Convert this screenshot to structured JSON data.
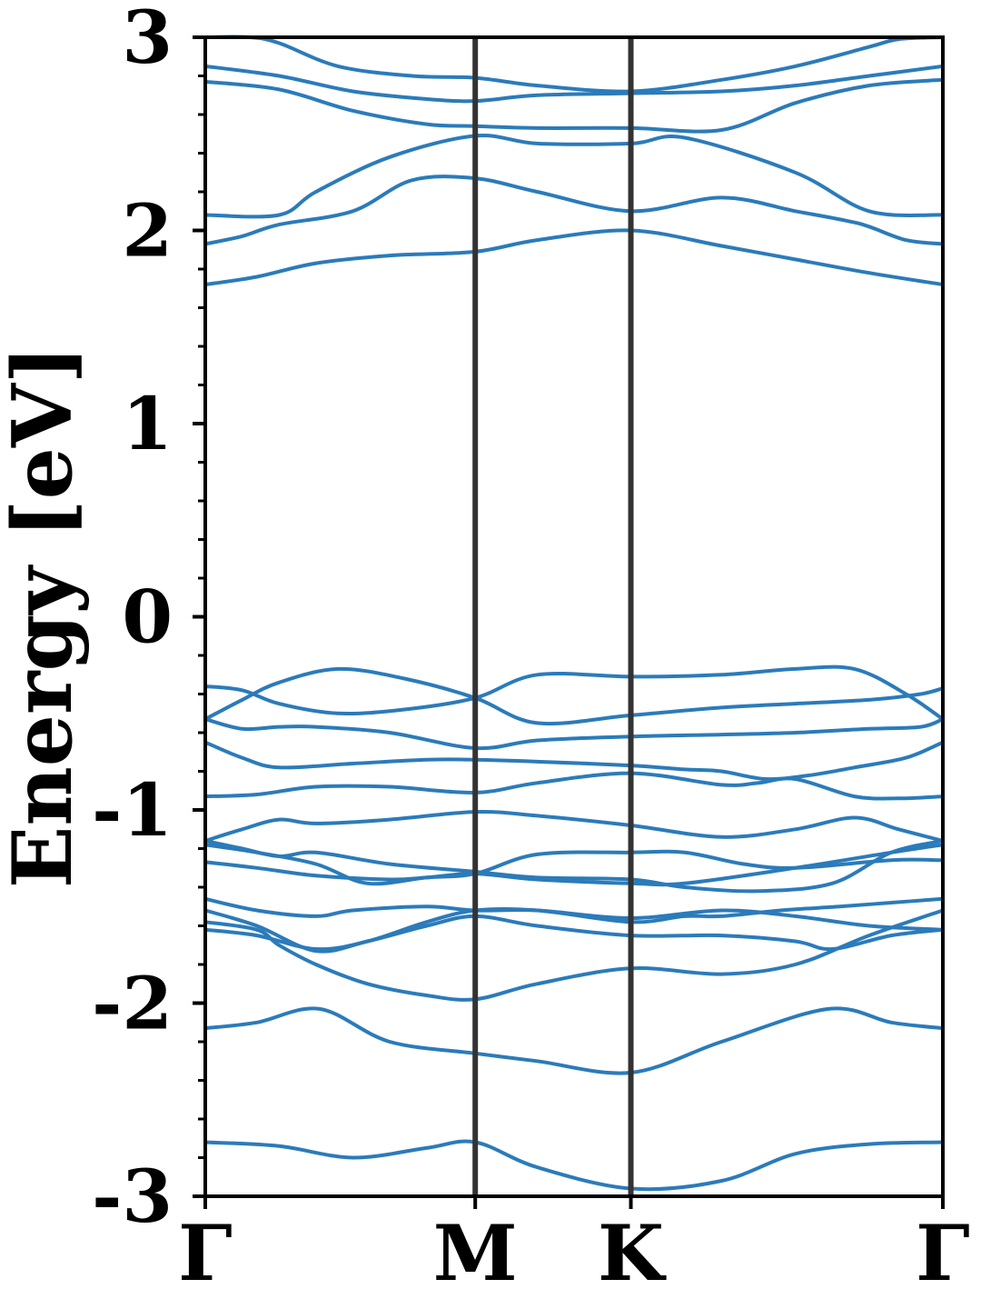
{
  "chart_data": {
    "type": "line",
    "title": "",
    "xlabel": "",
    "ylabel": "Energy [eV]",
    "ylim": [
      -3,
      3
    ],
    "yticks": [
      "3",
      "2",
      "1",
      "0",
      "-1",
      "-2",
      "-3"
    ],
    "yminor_step": 0.2,
    "xlim": [
      0,
      1
    ],
    "kpoints": [
      {
        "label": "Γ",
        "x": 0.0
      },
      {
        "label": "M",
        "x": 0.366
      },
      {
        "label": "K",
        "x": 0.577
      },
      {
        "label": "Γ",
        "x": 1.0
      }
    ],
    "grid": false,
    "legend": "none",
    "colors": {
      "band": "#2b7bba",
      "kline": "#333333",
      "axis": "#000000"
    },
    "series": [
      {
        "x": [
          0,
          0.1,
          0.2,
          0.3,
          0.366,
          0.45,
          0.577,
          0.7,
          0.8,
          0.9,
          1.0
        ],
        "values": [
          -2.72,
          -2.74,
          -2.8,
          -2.75,
          -2.72,
          -2.85,
          -2.96,
          -2.92,
          -2.78,
          -2.73,
          -2.72
        ]
      },
      {
        "x": [
          0,
          0.07,
          0.155,
          0.25,
          0.366,
          0.45,
          0.577,
          0.7,
          0.845,
          0.93,
          1.0
        ],
        "values": [
          -2.13,
          -2.1,
          -2.03,
          -2.2,
          -2.26,
          -2.3,
          -2.36,
          -2.2,
          -2.03,
          -2.1,
          -2.13
        ]
      },
      {
        "x": [
          0,
          0.07,
          0.1,
          0.15,
          0.22,
          0.3,
          0.366,
          0.45,
          0.577,
          0.7,
          0.8,
          0.9,
          1.0
        ],
        "values": [
          -1.58,
          -1.62,
          -1.7,
          -1.8,
          -1.9,
          -1.96,
          -1.98,
          -1.9,
          -1.82,
          -1.85,
          -1.8,
          -1.65,
          -1.52
        ]
      },
      {
        "x": [
          0,
          0.07,
          0.15,
          0.22,
          0.3,
          0.366,
          0.45,
          0.577,
          0.7,
          0.8,
          0.85,
          0.93,
          1.0
        ],
        "values": [
          -1.52,
          -1.6,
          -1.73,
          -1.68,
          -1.6,
          -1.55,
          -1.6,
          -1.65,
          -1.65,
          -1.68,
          -1.72,
          -1.65,
          -1.62
        ]
      },
      {
        "x": [
          0,
          0.07,
          0.15,
          0.22,
          0.3,
          0.366,
          0.45,
          0.577,
          0.65,
          0.7,
          0.78,
          0.86,
          0.93,
          1.0
        ],
        "values": [
          -1.62,
          -1.65,
          -1.72,
          -1.68,
          -1.58,
          -1.52,
          -1.52,
          -1.58,
          -1.55,
          -1.55,
          -1.52,
          -1.5,
          -1.48,
          -1.46
        ]
      },
      {
        "x": [
          0,
          0.07,
          0.15,
          0.2,
          0.3,
          0.366,
          0.45,
          0.577,
          0.7,
          0.8,
          0.9,
          1.0
        ],
        "values": [
          -1.46,
          -1.52,
          -1.55,
          -1.52,
          -1.5,
          -1.52,
          -1.52,
          -1.56,
          -1.52,
          -1.55,
          -1.6,
          -1.62
        ]
      },
      {
        "x": [
          0,
          0.07,
          0.15,
          0.25,
          0.3,
          0.366,
          0.45,
          0.577,
          0.65,
          0.8,
          0.93,
          1.0
        ],
        "values": [
          -1.27,
          -1.3,
          -1.34,
          -1.36,
          -1.35,
          -1.33,
          -1.36,
          -1.38,
          -1.38,
          -1.3,
          -1.22,
          -1.18
        ]
      },
      {
        "x": [
          0,
          0.07,
          0.15,
          0.22,
          0.3,
          0.366,
          0.45,
          0.577,
          0.65,
          0.73,
          0.8,
          0.93,
          1.0
        ],
        "values": [
          -1.18,
          -1.22,
          -1.28,
          -1.38,
          -1.35,
          -1.33,
          -1.23,
          -1.22,
          -1.22,
          -1.28,
          -1.3,
          -1.26,
          -1.26
        ]
      },
      {
        "x": [
          0,
          0.05,
          0.1,
          0.15,
          0.25,
          0.366,
          0.45,
          0.577,
          0.65,
          0.75,
          0.85,
          0.93,
          1.0
        ],
        "values": [
          -1.16,
          -1.2,
          -1.24,
          -1.22,
          -1.28,
          -1.32,
          -1.35,
          -1.36,
          -1.4,
          -1.42,
          -1.38,
          -1.22,
          -1.16
        ]
      },
      {
        "x": [
          0,
          0.05,
          0.1,
          0.15,
          0.25,
          0.366,
          0.45,
          0.577,
          0.7,
          0.8,
          0.88,
          0.94,
          1.0
        ],
        "values": [
          -1.16,
          -1.1,
          -1.05,
          -1.07,
          -1.05,
          -1.01,
          -1.03,
          -1.08,
          -1.14,
          -1.1,
          -1.04,
          -1.1,
          -1.16
        ]
      },
      {
        "x": [
          0,
          0.07,
          0.15,
          0.25,
          0.366,
          0.45,
          0.577,
          0.7,
          0.75,
          0.8,
          0.88,
          0.94,
          1.0
        ],
        "values": [
          -0.93,
          -0.92,
          -0.88,
          -0.88,
          -0.91,
          -0.86,
          -0.81,
          -0.87,
          -0.86,
          -0.84,
          -0.93,
          -0.94,
          -0.93
        ]
      },
      {
        "x": [
          0,
          0.05,
          0.1,
          0.2,
          0.3,
          0.366,
          0.45,
          0.577,
          0.65,
          0.7,
          0.76,
          0.82,
          0.88,
          0.95,
          1.0
        ],
        "values": [
          -0.65,
          -0.73,
          -0.78,
          -0.76,
          -0.74,
          -0.74,
          -0.75,
          -0.77,
          -0.79,
          -0.8,
          -0.84,
          -0.82,
          -0.78,
          -0.73,
          -0.65
        ]
      },
      {
        "x": [
          0,
          0.05,
          0.1,
          0.15,
          0.25,
          0.366,
          0.45,
          0.577,
          0.7,
          0.8,
          0.9,
          0.97,
          1.0
        ],
        "values": [
          -0.53,
          -0.58,
          -0.57,
          -0.57,
          -0.6,
          -0.68,
          -0.64,
          -0.62,
          -0.61,
          -0.6,
          -0.58,
          -0.57,
          -0.53
        ]
      },
      {
        "x": [
          0,
          0.05,
          0.1,
          0.18,
          0.27,
          0.366,
          0.45,
          0.577,
          0.7,
          0.8,
          0.9,
          0.97,
          1.0
        ],
        "values": [
          -0.53,
          -0.43,
          -0.34,
          -0.27,
          -0.32,
          -0.42,
          -0.55,
          -0.51,
          -0.47,
          -0.45,
          -0.43,
          -0.4,
          -0.37
        ]
      },
      {
        "x": [
          0,
          0.05,
          0.1,
          0.18,
          0.27,
          0.366,
          0.45,
          0.577,
          0.7,
          0.8,
          0.88,
          0.95,
          1.0
        ],
        "values": [
          -0.36,
          -0.38,
          -0.45,
          -0.5,
          -0.48,
          -0.42,
          -0.3,
          -0.31,
          -0.3,
          -0.27,
          -0.27,
          -0.4,
          -0.53
        ]
      },
      {
        "x": [
          0,
          0.07,
          0.15,
          0.25,
          0.366,
          0.45,
          0.577,
          0.7,
          0.8,
          0.9,
          1.0
        ],
        "values": [
          1.72,
          1.76,
          1.83,
          1.87,
          1.89,
          1.95,
          2.0,
          1.92,
          1.85,
          1.78,
          1.72
        ]
      },
      {
        "x": [
          0,
          0.05,
          0.1,
          0.2,
          0.28,
          0.366,
          0.45,
          0.577,
          0.7,
          0.8,
          0.87,
          0.9,
          0.95,
          1.0
        ],
        "values": [
          1.93,
          1.97,
          2.03,
          2.1,
          2.26,
          2.27,
          2.2,
          2.1,
          2.17,
          2.1,
          2.05,
          2.02,
          1.95,
          1.93
        ]
      },
      {
        "x": [
          0,
          0.1,
          0.15,
          0.25,
          0.366,
          0.45,
          0.577,
          0.65,
          0.8,
          0.9,
          1.0
        ],
        "values": [
          2.08,
          2.08,
          2.2,
          2.38,
          2.49,
          2.45,
          2.45,
          2.48,
          2.3,
          2.1,
          2.08
        ]
      },
      {
        "x": [
          0,
          0.1,
          0.2,
          0.3,
          0.366,
          0.45,
          0.577,
          0.7,
          0.8,
          0.9,
          1.0
        ],
        "values": [
          2.77,
          2.73,
          2.62,
          2.55,
          2.54,
          2.53,
          2.53,
          2.52,
          2.66,
          2.75,
          2.78
        ]
      },
      {
        "x": [
          0,
          0.1,
          0.2,
          0.3,
          0.366,
          0.45,
          0.577,
          0.7,
          0.8,
          0.9,
          1.0
        ],
        "values": [
          2.85,
          2.8,
          2.72,
          2.68,
          2.67,
          2.7,
          2.71,
          2.72,
          2.75,
          2.8,
          2.85
        ]
      },
      {
        "x": [
          0,
          0.06,
          0.1,
          0.18,
          0.28,
          0.366,
          0.45,
          0.577,
          0.7,
          0.8,
          0.9,
          0.94,
          1.0
        ],
        "values": [
          3.0,
          3.0,
          2.97,
          2.85,
          2.8,
          2.79,
          2.75,
          2.72,
          2.78,
          2.85,
          2.95,
          2.99,
          3.0
        ]
      }
    ]
  }
}
